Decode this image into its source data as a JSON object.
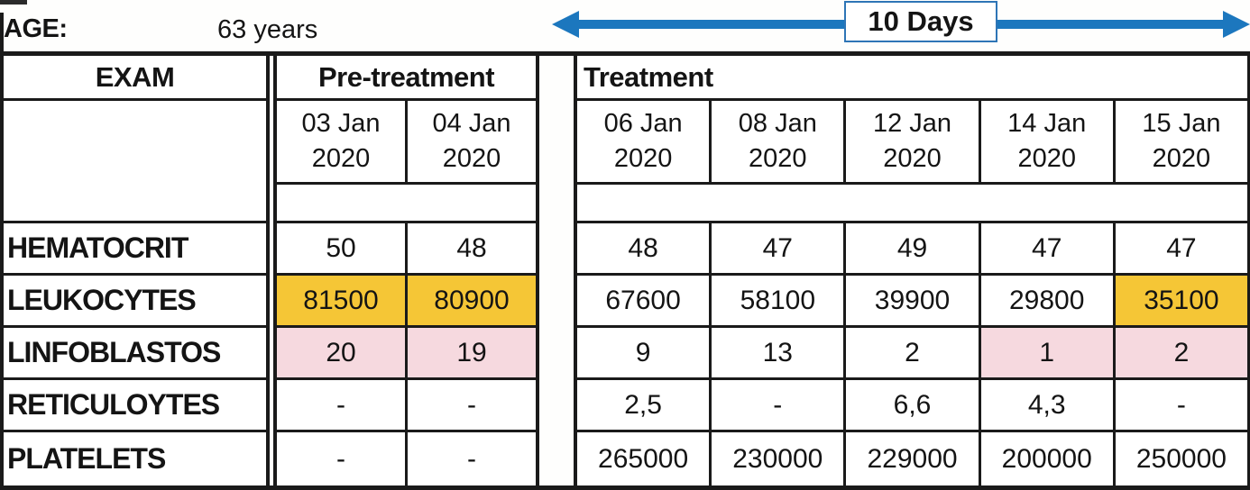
{
  "header": {
    "age_label": "AGE:",
    "age_value": "63 years",
    "duration_label": "10 Days"
  },
  "colors": {
    "highlight_yellow": "#F5C636",
    "highlight_pink": "#F6D9DF",
    "arrow_blue": "#1C77BE",
    "duration_box_border": "#2E75B6",
    "grid_line": "#1A1A1A"
  },
  "table": {
    "exam_header": "EXAM",
    "pretreatment": {
      "title": "Pre-treatment",
      "dates": [
        {
          "l1": "03 Jan",
          "l2": "2020"
        },
        {
          "l1": "04 Jan",
          "l2": "2020"
        }
      ]
    },
    "treatment": {
      "title": "Treatment",
      "dates": [
        {
          "l1": "06 Jan",
          "l2": "2020"
        },
        {
          "l1": "08 Jan",
          "l2": "2020"
        },
        {
          "l1": "12 Jan",
          "l2": "2020"
        },
        {
          "l1": "14 Jan",
          "l2": "2020"
        },
        {
          "l1": "15 Jan",
          "l2": "2020"
        }
      ]
    },
    "rows": [
      {
        "label": "HEMATOCRIT",
        "pre": [
          "50",
          "48"
        ],
        "treatment": [
          "48",
          "47",
          "49",
          "47",
          "47"
        ]
      },
      {
        "label": "LEUKOCYTES",
        "pre": [
          "81500",
          "80900"
        ],
        "treatment": [
          "67600",
          "58100",
          "39900",
          "29800",
          "35100"
        ]
      },
      {
        "label": "LINFOBLASTOS",
        "pre": [
          "20",
          "19"
        ],
        "treatment": [
          "9",
          "13",
          "2",
          "1",
          "2"
        ]
      },
      {
        "label": "RETICULOYTES",
        "pre": [
          "-",
          "-"
        ],
        "treatment": [
          "2,5",
          "-",
          "6,6",
          "4,3",
          "-"
        ]
      },
      {
        "label": "PLATELETS",
        "pre": [
          "-",
          "-"
        ],
        "treatment": [
          "265000",
          "230000",
          "229000",
          "200000",
          "250000"
        ]
      }
    ]
  }
}
